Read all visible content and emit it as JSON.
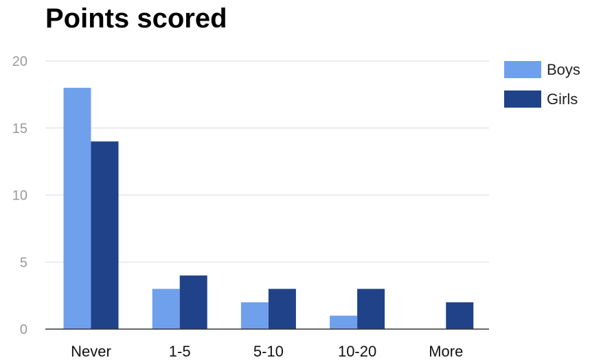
{
  "chart_data": {
    "type": "bar",
    "title": "Points scored",
    "xlabel": "",
    "ylabel": "",
    "categories": [
      "Never",
      "1-5",
      "5-10",
      "10-20",
      "More"
    ],
    "series": [
      {
        "name": "Boys",
        "values": [
          18,
          3,
          2,
          1,
          0
        ],
        "color": "#6fa0ec"
      },
      {
        "name": "Girls",
        "values": [
          14,
          4,
          3,
          3,
          2
        ],
        "color": "#1f4288"
      }
    ],
    "ylim": [
      0,
      20
    ],
    "yticks": [
      0,
      5,
      10,
      15,
      20
    ],
    "grid": true,
    "legend_position": "right"
  }
}
